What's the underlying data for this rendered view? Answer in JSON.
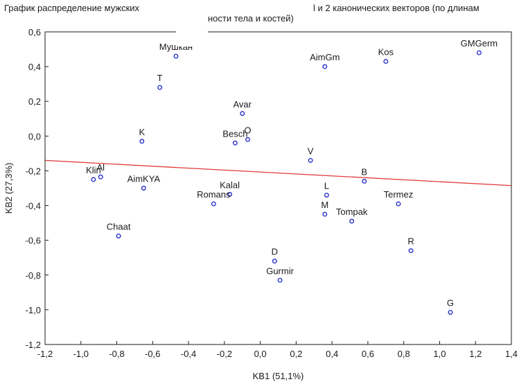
{
  "chart_data": {
    "type": "scatter",
    "title_start": "График распределение мужских",
    "title_end": "l и 2 канонических векторов (по длинам",
    "title_line2": "ности тела и костей)",
    "xlabel": "KB1 (51,1%)",
    "ylabel": "KB2 (27,3%)",
    "xlim": [
      -1.2,
      1.4
    ],
    "ylim": [
      -1.2,
      0.6
    ],
    "xticks": [
      "-1,2",
      "-1,0",
      "-0,8",
      "-0,6",
      "-0,4",
      "-0,2",
      "0,0",
      "0,2",
      "0,4",
      "0,6",
      "0,8",
      "1,0",
      "1,2",
      "1,4"
    ],
    "yticks": [
      "0,6",
      "0,4",
      "0,2",
      "0,0",
      "-0,2",
      "-0,4",
      "-0,6",
      "-0,8",
      "-1,0",
      "-1,2"
    ],
    "grid": false,
    "marker_color": "#1a24c8",
    "trend_color": "#e23a3a",
    "trend_line": {
      "x": [
        -1.2,
        1.4
      ],
      "y": [
        -0.14,
        -0.285
      ]
    },
    "points": [
      {
        "label": "Мушкан",
        "x": -0.47,
        "y": 0.46
      },
      {
        "label": "T",
        "x": -0.56,
        "y": 0.28
      },
      {
        "label": "AimGm",
        "x": 0.36,
        "y": 0.4
      },
      {
        "label": "Kos",
        "x": 0.7,
        "y": 0.43
      },
      {
        "label": "GMGerm",
        "x": 1.22,
        "y": 0.48
      },
      {
        "label": "Avar",
        "x": -0.1,
        "y": 0.13
      },
      {
        "label": "K",
        "x": -0.66,
        "y": -0.03
      },
      {
        "label": "Besch",
        "x": -0.14,
        "y": -0.04
      },
      {
        "label": "O",
        "x": -0.07,
        "y": -0.02
      },
      {
        "label": "V",
        "x": 0.28,
        "y": -0.14
      },
      {
        "label": "Klin",
        "x": -0.93,
        "y": -0.25
      },
      {
        "label": "Al",
        "x": -0.89,
        "y": -0.235
      },
      {
        "label": "AimKYA",
        "x": -0.65,
        "y": -0.3
      },
      {
        "label": "Kalal",
        "x": -0.17,
        "y": -0.335
      },
      {
        "label": "Romans",
        "x": -0.26,
        "y": -0.39
      },
      {
        "label": "B",
        "x": 0.58,
        "y": -0.26
      },
      {
        "label": "L",
        "x": 0.37,
        "y": -0.34
      },
      {
        "label": "Termez",
        "x": 0.77,
        "y": -0.39
      },
      {
        "label": "M",
        "x": 0.36,
        "y": -0.45
      },
      {
        "label": "Tompak",
        "x": 0.51,
        "y": -0.49
      },
      {
        "label": "Chaat",
        "x": -0.79,
        "y": -0.575
      },
      {
        "label": "R",
        "x": 0.84,
        "y": -0.66
      },
      {
        "label": "D",
        "x": 0.08,
        "y": -0.72
      },
      {
        "label": "Gurmir",
        "x": 0.11,
        "y": -0.83
      },
      {
        "label": "G",
        "x": 1.06,
        "y": -1.015
      }
    ]
  }
}
